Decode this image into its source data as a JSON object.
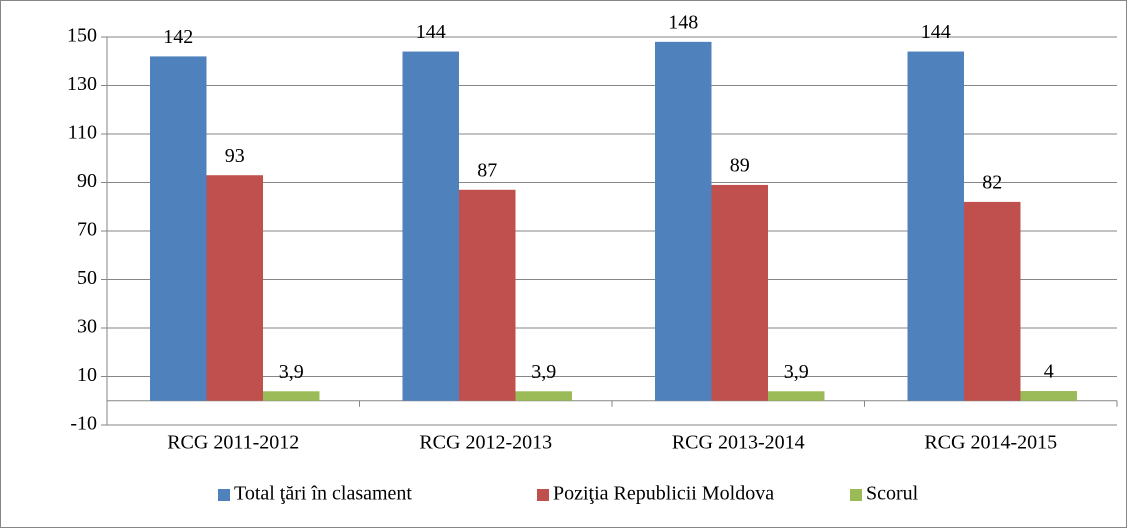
{
  "chart_data": {
    "type": "bar",
    "categories": [
      "RCG 2011-2012",
      "RCG 2012-2013",
      "RCG 2013-2014",
      "RCG 2014-2015"
    ],
    "series": [
      {
        "name": "Total ţări în clasament",
        "color": "#4f81bd",
        "values": [
          142,
          144,
          148,
          144
        ]
      },
      {
        "name": "Poziţia Republicii Moldova",
        "color": "#c0504d",
        "values": [
          93,
          87,
          89,
          82
        ]
      },
      {
        "name": "Scorul",
        "color": "#9bbb59",
        "values": [
          3.9,
          3.9,
          3.9,
          4
        ],
        "value_labels": [
          "3,9",
          "3,9",
          "3,9",
          "4"
        ]
      }
    ],
    "ylim": [
      -10,
      150
    ],
    "yticks": [
      -10,
      10,
      30,
      50,
      70,
      90,
      110,
      130,
      150
    ],
    "grid": true,
    "legend": "bottom"
  }
}
